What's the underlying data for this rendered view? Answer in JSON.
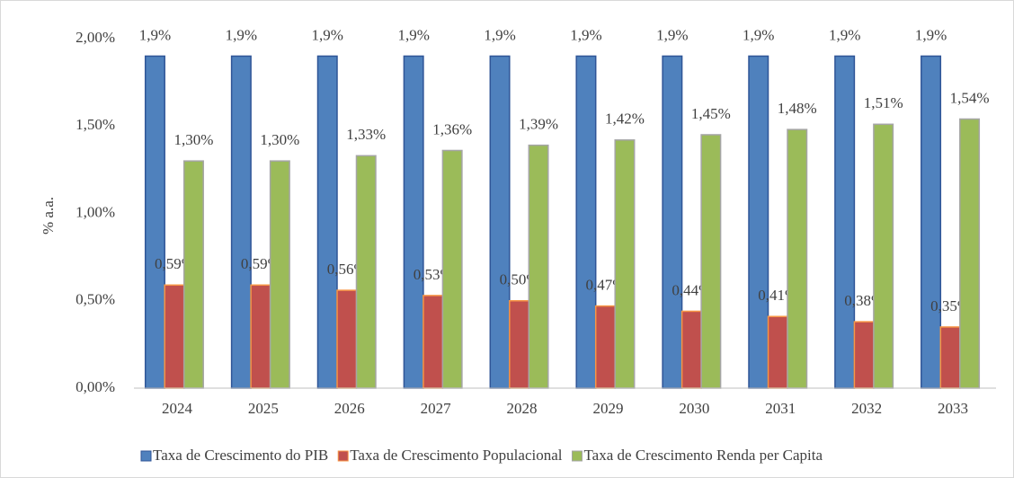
{
  "chart_data": {
    "type": "bar",
    "y_label": "% a.a.",
    "categories": [
      "2024",
      "2025",
      "2026",
      "2027",
      "2028",
      "2029",
      "2030",
      "2031",
      "2032",
      "2033"
    ],
    "series": [
      {
        "name": "Taxa de Crescimento do PIB",
        "color": "#4f81bd",
        "stroke": "#2f5597",
        "values": [
          1.9,
          1.9,
          1.9,
          1.9,
          1.9,
          1.9,
          1.9,
          1.9,
          1.9,
          1.9
        ],
        "value_labels": [
          "1,9%",
          "1,9%",
          "1,9%",
          "1,9%",
          "1,9%",
          "1,9%",
          "1,9%",
          "1,9%",
          "1,9%",
          "1,9%"
        ]
      },
      {
        "name": "Taxa de Crescimento Populacional",
        "color": "#c0504d",
        "stroke": "#f79646",
        "values": [
          0.59,
          0.59,
          0.56,
          0.53,
          0.5,
          0.47,
          0.44,
          0.41,
          0.38,
          0.35
        ],
        "value_labels": [
          "0,59%",
          "0,59%",
          "0,56%",
          "0,53%",
          "0,50%",
          "0,47%",
          "0,44%",
          "0,41%",
          "0,38%",
          "0,35%"
        ]
      },
      {
        "name": "Taxa de Crescimento Renda per Capita",
        "color": "#9bbb59",
        "stroke": "#a5a5a5",
        "values": [
          1.3,
          1.3,
          1.33,
          1.36,
          1.39,
          1.42,
          1.45,
          1.48,
          1.51,
          1.54
        ],
        "value_labels": [
          "1,30%",
          "1,30%",
          "1,33%",
          "1,36%",
          "1,39%",
          "1,42%",
          "1,45%",
          "1,48%",
          "1,51%",
          "1,54%"
        ]
      }
    ],
    "ylim": [
      0,
      2
    ],
    "yticks": [
      {
        "value": 0,
        "label": "0,00%"
      },
      {
        "value": 0.5,
        "label": "0,50%"
      },
      {
        "value": 1,
        "label": "1,00%"
      },
      {
        "value": 1.5,
        "label": "1,50%"
      },
      {
        "value": 2,
        "label": "2,00%"
      }
    ],
    "grid": false,
    "legend": "bottom"
  }
}
